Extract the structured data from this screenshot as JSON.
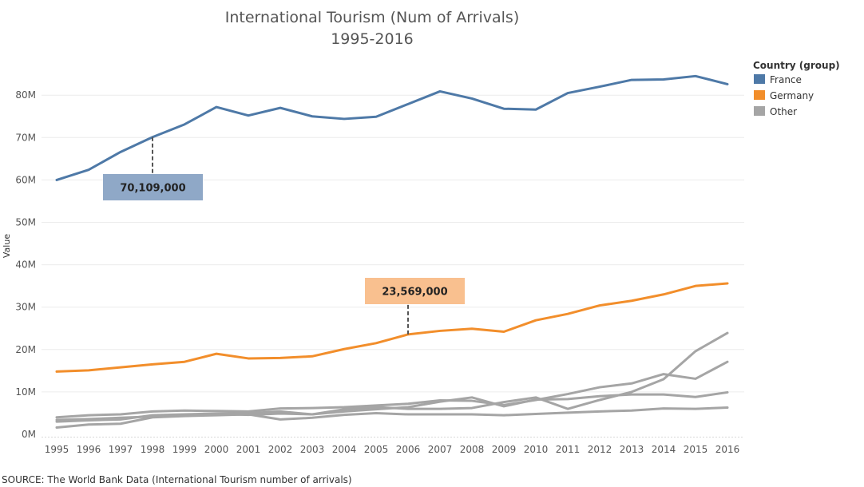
{
  "title_line1": "International Tourism (Num of Arrivals)",
  "title_line2": "1995-2016",
  "source": "SOURCE: The World Bank Data (International Tourism number of arrivals)",
  "legend": {
    "title": "Country (group)",
    "items": [
      {
        "label": "France",
        "color": "#4e79a7"
      },
      {
        "label": "Germany",
        "color": "#f28e2b"
      },
      {
        "label": "Other",
        "color": "#a5a5a5"
      }
    ]
  },
  "chart_data": {
    "type": "line",
    "title": "International Tourism (Num of Arrivals) 1995-2016",
    "xlabel": "",
    "ylabel": "Value",
    "ylim": [
      0,
      88000000
    ],
    "grid": true,
    "legend_position": "top-right",
    "x": [
      1995,
      1996,
      1997,
      1998,
      1999,
      2000,
      2001,
      2002,
      2003,
      2004,
      2005,
      2006,
      2007,
      2008,
      2009,
      2010,
      2011,
      2012,
      2013,
      2014,
      2015,
      2016
    ],
    "y_ticks": [
      {
        "value": 0,
        "label": "0M"
      },
      {
        "value": 10000000,
        "label": "10M"
      },
      {
        "value": 20000000,
        "label": "20M"
      },
      {
        "value": 30000000,
        "label": "30M"
      },
      {
        "value": 40000000,
        "label": "40M"
      },
      {
        "value": 50000000,
        "label": "50M"
      },
      {
        "value": 60000000,
        "label": "60M"
      },
      {
        "value": 70000000,
        "label": "70M"
      },
      {
        "value": 80000000,
        "label": "80M"
      }
    ],
    "series": [
      {
        "name": "France",
        "group": "France",
        "color": "#4e79a7",
        "values": [
          60000000,
          62400000,
          66600000,
          70109000,
          73100000,
          77200000,
          75200000,
          77000000,
          75000000,
          74400000,
          74900000,
          77900000,
          80900000,
          79200000,
          76800000,
          76600000,
          80500000,
          82000000,
          83600000,
          83700000,
          84500000,
          82600000
        ]
      },
      {
        "name": "Germany",
        "group": "Germany",
        "color": "#f28e2b",
        "values": [
          14800000,
          15100000,
          15800000,
          16500000,
          17100000,
          19000000,
          17900000,
          18000000,
          18400000,
          20100000,
          21500000,
          23569000,
          24400000,
          24900000,
          24200000,
          26900000,
          28400000,
          30400000,
          31500000,
          33000000,
          35000000,
          35600000
        ]
      },
      {
        "name": "",
        "group": "Other",
        "color": "#a5a5a5",
        "values": [
          4000000,
          4500000,
          4700000,
          5400000,
          5600000,
          5500000,
          5400000,
          6100000,
          6200000,
          6400000,
          6800000,
          7200000,
          8000000,
          7900000,
          6900000,
          8100000,
          9500000,
          11100000,
          12000000,
          14200000,
          13100000,
          17100000
        ]
      },
      {
        "name": "",
        "group": "Other",
        "color": "#a5a5a5",
        "values": [
          3400000,
          3600000,
          3900000,
          4200000,
          4600000,
          4800000,
          4600000,
          4900000,
          4700000,
          5900000,
          6400000,
          6000000,
          6000000,
          6200000,
          7600000,
          8700000,
          6000000,
          8100000,
          10000000,
          13000000,
          19600000,
          23900000
        ]
      },
      {
        "name": "",
        "group": "Other",
        "color": "#a5a5a5",
        "values": [
          3000000,
          3300000,
          3500000,
          4500000,
          4700000,
          4900000,
          5000000,
          5400000,
          4700000,
          5400000,
          5900000,
          6400000,
          7700000,
          8700000,
          6600000,
          8200000,
          8300000,
          9000000,
          9400000,
          9400000,
          8800000,
          9900000
        ]
      },
      {
        "name": "",
        "group": "Other",
        "color": "#a5a5a5",
        "values": [
          1600000,
          2300000,
          2500000,
          4000000,
          4300000,
          4500000,
          4700000,
          3500000,
          3900000,
          4600000,
          5000000,
          4700000,
          4700000,
          4700000,
          4500000,
          4800000,
          5100000,
          5400000,
          5600000,
          6100000,
          6000000,
          6300000
        ]
      }
    ],
    "annotations": [
      {
        "series": "France",
        "x": 1998,
        "value": 70109000,
        "label": "70,109,000",
        "color": "#8fa8c7",
        "position": "below"
      },
      {
        "series": "Germany",
        "x": 2006,
        "value": 23569000,
        "label": "23,569,000",
        "color": "#f9c08f",
        "position": "above"
      }
    ]
  }
}
